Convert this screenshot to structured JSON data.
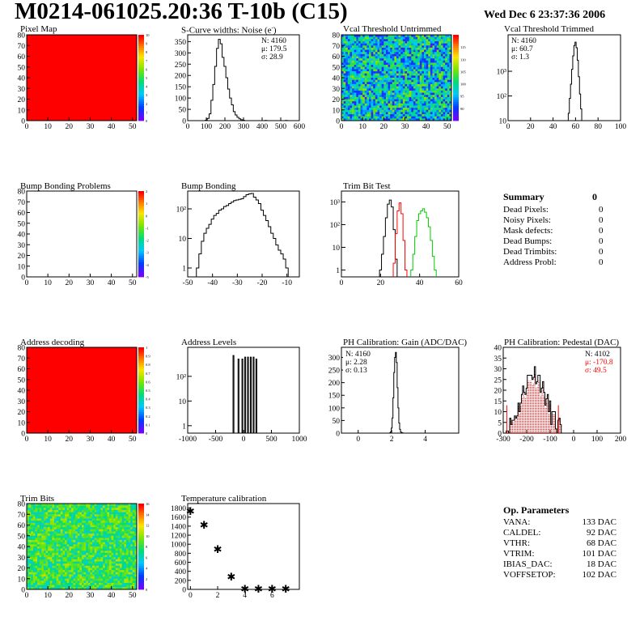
{
  "title": "M0214-061025.20:36 T-10b (C15)",
  "date": "Wed Dec  6 23:37:36 2006",
  "colors": {
    "red": "#ff0000",
    "black": "#000000",
    "green": "#00cc00"
  },
  "panels": {
    "pixel_map": {
      "title": "Pixel Map"
    },
    "scurve": {
      "title": "S-Curve widths: Noise (e",
      "title_sup": "-",
      "title_end": ")",
      "stats": [
        "N: 4160",
        "μ: 179.5",
        "σ: 28.9"
      ]
    },
    "vcal_untrimmed": {
      "title": "Vcal Threshold Untrimmed"
    },
    "vcal_trimmed": {
      "title": "Vcal Threshold Trimmed",
      "stats": [
        "N: 4160",
        "μ: 60.7",
        "σ:  1.3"
      ]
    },
    "bump_problems": {
      "title": "Bump Bonding Problems"
    },
    "bump_bonding": {
      "title": "Bump Bonding"
    },
    "trim_bit_test": {
      "title": "Trim Bit Test"
    },
    "address_decoding": {
      "title": "Address decoding"
    },
    "address_levels": {
      "title": "Address Levels"
    },
    "ph_gain": {
      "title": "PH Calibration: Gain (ADC/DAC)",
      "stats": [
        "N: 4160",
        "μ: 2.28",
        "σ: 0.13"
      ]
    },
    "ph_pedestal": {
      "title": "PH Calibration: Pedestal (DAC)",
      "stats": [
        "N: 4102",
        "μ: -170.8",
        "σ: 49.5"
      ]
    },
    "trim_bits": {
      "title": "Trim Bits"
    },
    "temperature": {
      "title": "Temperature calibration"
    }
  },
  "summary": {
    "title": "Summary",
    "total": "0",
    "rows": [
      {
        "label": "Dead Pixels:",
        "value": "0"
      },
      {
        "label": "Noisy Pixels:",
        "value": "0"
      },
      {
        "label": "Mask defects:",
        "value": "0"
      },
      {
        "label": "Dead Bumps:",
        "value": "0"
      },
      {
        "label": "Dead Trimbits:",
        "value": "0"
      },
      {
        "label": "Address Probl:",
        "value": "0"
      }
    ]
  },
  "op_parameters": {
    "title": "Op. Parameters",
    "rows": [
      {
        "label": "VANA:",
        "value": "133 DAC"
      },
      {
        "label": "CALDEL:",
        "value": "92 DAC"
      },
      {
        "label": "VTHR:",
        "value": "68 DAC"
      },
      {
        "label": "VTRIM:",
        "value": "101 DAC"
      },
      {
        "label": "IBIAS_DAC:",
        "value": "18 DAC"
      },
      {
        "label": "VOFFSETOP:",
        "value": "102 DAC"
      }
    ]
  },
  "chart_data": [
    {
      "id": "pixel_map",
      "type": "heatmap",
      "xlim": [
        0,
        52
      ],
      "ylim": [
        0,
        80
      ],
      "xticks": [
        0,
        10,
        20,
        30,
        40,
        50
      ],
      "yticks": [
        0,
        10,
        20,
        30,
        40,
        50,
        60,
        70,
        80
      ],
      "uniform_value": 10,
      "zlim": [
        0,
        10
      ],
      "palette_ticks": [
        0,
        1,
        2,
        3,
        4,
        5,
        6,
        7,
        8,
        9,
        10
      ]
    },
    {
      "id": "scurve",
      "type": "line",
      "xlim": [
        0,
        600
      ],
      "ylim": [
        0,
        380
      ],
      "xticks": [
        0,
        100,
        200,
        300,
        400,
        500,
        600
      ],
      "yticks": [
        0,
        50,
        100,
        150,
        200,
        250,
        300,
        350
      ],
      "x": [
        100,
        110,
        120,
        130,
        140,
        150,
        160,
        170,
        180,
        190,
        200,
        210,
        220,
        230,
        240,
        250,
        260,
        270,
        280,
        290,
        300,
        310,
        320,
        330,
        340,
        350,
        360,
        370,
        380,
        390,
        400,
        410,
        420,
        430,
        440,
        450,
        460,
        470,
        480,
        490,
        500,
        510,
        520,
        530,
        540,
        550,
        560,
        570,
        580,
        590
      ],
      "y": [
        2,
        10,
        30,
        90,
        160,
        240,
        320,
        360,
        340,
        280,
        240,
        190,
        140,
        100,
        70,
        40,
        25,
        15,
        8,
        4,
        2,
        0,
        0,
        0,
        0,
        0,
        0,
        0,
        0,
        0,
        0,
        0,
        1,
        0,
        0,
        0,
        0,
        0,
        0,
        0,
        0,
        0,
        0,
        1,
        0,
        0,
        0,
        0,
        0,
        0
      ]
    },
    {
      "id": "vcal_untrimmed",
      "type": "heatmap",
      "xlim": [
        0,
        52
      ],
      "ylim": [
        0,
        80
      ],
      "xticks": [
        0,
        10,
        20,
        30,
        40,
        50
      ],
      "yticks": [
        0,
        10,
        20,
        30,
        40,
        50,
        60,
        70,
        80
      ],
      "zlim": [
        85,
        120
      ],
      "palette_ticks": [
        90,
        95,
        100,
        105,
        110,
        115
      ]
    },
    {
      "id": "vcal_trimmed",
      "type": "line",
      "log_y": true,
      "xlim": [
        0,
        100
      ],
      "ylim": [
        1,
        3000
      ],
      "xticks": [
        0,
        20,
        40,
        60,
        80,
        100
      ],
      "ytick_labels": [
        "10",
        "10²",
        "10³"
      ],
      "x": [
        54,
        55,
        56,
        57,
        58,
        59,
        60,
        61,
        62,
        63,
        64,
        65,
        66
      ],
      "y": [
        2,
        8,
        30,
        120,
        420,
        1100,
        1500,
        900,
        280,
        60,
        12,
        3,
        1
      ]
    },
    {
      "id": "bump_problems",
      "type": "heatmap",
      "xlim": [
        0,
        52
      ],
      "ylim": [
        0,
        80
      ],
      "xticks": [
        0,
        10,
        20,
        30,
        40,
        50
      ],
      "yticks": [
        0,
        10,
        20,
        30,
        40,
        50,
        60,
        70,
        80
      ],
      "empty": true,
      "zlim": [
        -5,
        2
      ],
      "palette_ticks": [
        -5,
        -4,
        -3,
        -2,
        -1,
        0,
        1,
        2
      ]
    },
    {
      "id": "bump_bonding",
      "type": "line",
      "log_y": true,
      "xlim": [
        -50,
        -5
      ],
      "ylim": [
        0.5,
        400
      ],
      "xticks": [
        -50,
        -40,
        -30,
        -20,
        -10
      ],
      "ytick_labels": [
        "1",
        "10",
        "10²"
      ],
      "x": [
        -46,
        -45,
        -44,
        -43,
        -42,
        -41,
        -40,
        -39,
        -38,
        -37,
        -36,
        -35,
        -34,
        -33,
        -32,
        -31,
        -30,
        -29,
        -28,
        -27,
        -26,
        -25,
        -24,
        -23,
        -22,
        -21,
        -20,
        -19,
        -18,
        -17,
        -16,
        -15,
        -14,
        -13,
        -12,
        -11,
        -10
      ],
      "y": [
        1,
        3,
        8,
        15,
        22,
        30,
        45,
        60,
        70,
        90,
        100,
        120,
        130,
        150,
        170,
        190,
        200,
        210,
        220,
        260,
        300,
        320,
        330,
        250,
        200,
        150,
        90,
        60,
        40,
        25,
        15,
        10,
        6,
        4,
        3,
        2,
        1
      ]
    },
    {
      "id": "trim_bit_test",
      "type": "line",
      "log_y": true,
      "xlim": [
        0,
        60
      ],
      "ylim": [
        0.5,
        3000
      ],
      "xticks": [
        0,
        20,
        40,
        60
      ],
      "ytick_labels": [
        "1",
        "10",
        "10²",
        "10³"
      ],
      "series": [
        {
          "color": "black",
          "x": [
            20,
            21,
            22,
            23,
            24,
            25,
            26,
            27,
            28
          ],
          "y": [
            1,
            5,
            30,
            200,
            800,
            1200,
            600,
            60,
            3
          ]
        },
        {
          "color": "red",
          "x": [
            27,
            28,
            29,
            30,
            31,
            32,
            33
          ],
          "y": [
            2,
            40,
            400,
            900,
            300,
            20,
            1
          ]
        },
        {
          "color": "green",
          "x": [
            36,
            37,
            38,
            39,
            40,
            41,
            42,
            43,
            44,
            45,
            46,
            47,
            48
          ],
          "y": [
            1,
            5,
            30,
            150,
            300,
            400,
            500,
            350,
            200,
            80,
            20,
            4,
            1
          ]
        }
      ]
    },
    {
      "id": "address_decoding",
      "type": "heatmap",
      "xlim": [
        0,
        52
      ],
      "ylim": [
        0,
        80
      ],
      "xticks": [
        0,
        10,
        20,
        30,
        40,
        50
      ],
      "yticks": [
        0,
        10,
        20,
        30,
        40,
        50,
        60,
        70,
        80
      ],
      "uniform_value": 1,
      "zlim": [
        0,
        1
      ],
      "palette_ticks": [
        0,
        0.1,
        0.2,
        0.3,
        0.4,
        0.5,
        0.6,
        0.7,
        0.8,
        0.9,
        1
      ]
    },
    {
      "id": "address_levels",
      "type": "line",
      "log_y": true,
      "xlim": [
        -1000,
        1000
      ],
      "ylim": [
        0.5,
        1500
      ],
      "xticks": [
        -1000,
        -500,
        0,
        500,
        1000
      ],
      "ytick_labels": [
        "1",
        "10",
        "10²"
      ],
      "peaks_x": [
        -180,
        -90,
        -20,
        30,
        80,
        130,
        180,
        230
      ],
      "peaks_y": [
        700,
        500,
        500,
        600,
        600,
        600,
        600,
        500
      ]
    },
    {
      "id": "ph_gain",
      "type": "line",
      "xlim": [
        -1,
        6
      ],
      "ylim": [
        0,
        340
      ],
      "xticks": [
        0,
        2,
        4
      ],
      "yticks": [
        0,
        50,
        100,
        150,
        200,
        250,
        300
      ],
      "x": [
        1.9,
        1.95,
        2.0,
        2.05,
        2.1,
        2.15,
        2.2,
        2.25,
        2.3,
        2.35,
        2.4,
        2.45,
        2.5,
        2.55,
        2.6,
        2.65
      ],
      "y": [
        1,
        5,
        20,
        60,
        140,
        240,
        300,
        320,
        280,
        180,
        100,
        40,
        15,
        5,
        2,
        1
      ]
    },
    {
      "id": "ph_pedestal",
      "type": "line",
      "xlim": [
        -300,
        200
      ],
      "ylim": [
        0,
        40
      ],
      "xticks": [
        -300,
        -200,
        -100,
        0,
        100,
        200
      ],
      "yticks": [
        0,
        5,
        10,
        15,
        20,
        25,
        30,
        35,
        40
      ],
      "series_name": "fit"
    },
    {
      "id": "trim_bits",
      "type": "heatmap",
      "xlim": [
        0,
        52
      ],
      "ylim": [
        0,
        80
      ],
      "xticks": [
        0,
        10,
        20,
        30,
        40,
        50
      ],
      "yticks": [
        0,
        10,
        20,
        30,
        40,
        50,
        60,
        70,
        80
      ],
      "zlim": [
        0,
        16
      ],
      "palette_ticks": [
        0,
        2,
        4,
        6,
        8,
        10,
        12,
        14,
        16
      ]
    },
    {
      "id": "temperature",
      "type": "scatter",
      "xlim": [
        -0.2,
        8
      ],
      "ylim": [
        0,
        1900
      ],
      "xticks": [
        0,
        2,
        4,
        6
      ],
      "yticks": [
        0,
        200,
        400,
        600,
        800,
        1000,
        1200,
        1400,
        1600,
        1800
      ],
      "x": [
        0,
        1,
        2,
        3,
        4,
        5,
        6,
        7
      ],
      "y": [
        1740,
        1430,
        900,
        290,
        20,
        20,
        20,
        20
      ]
    }
  ]
}
